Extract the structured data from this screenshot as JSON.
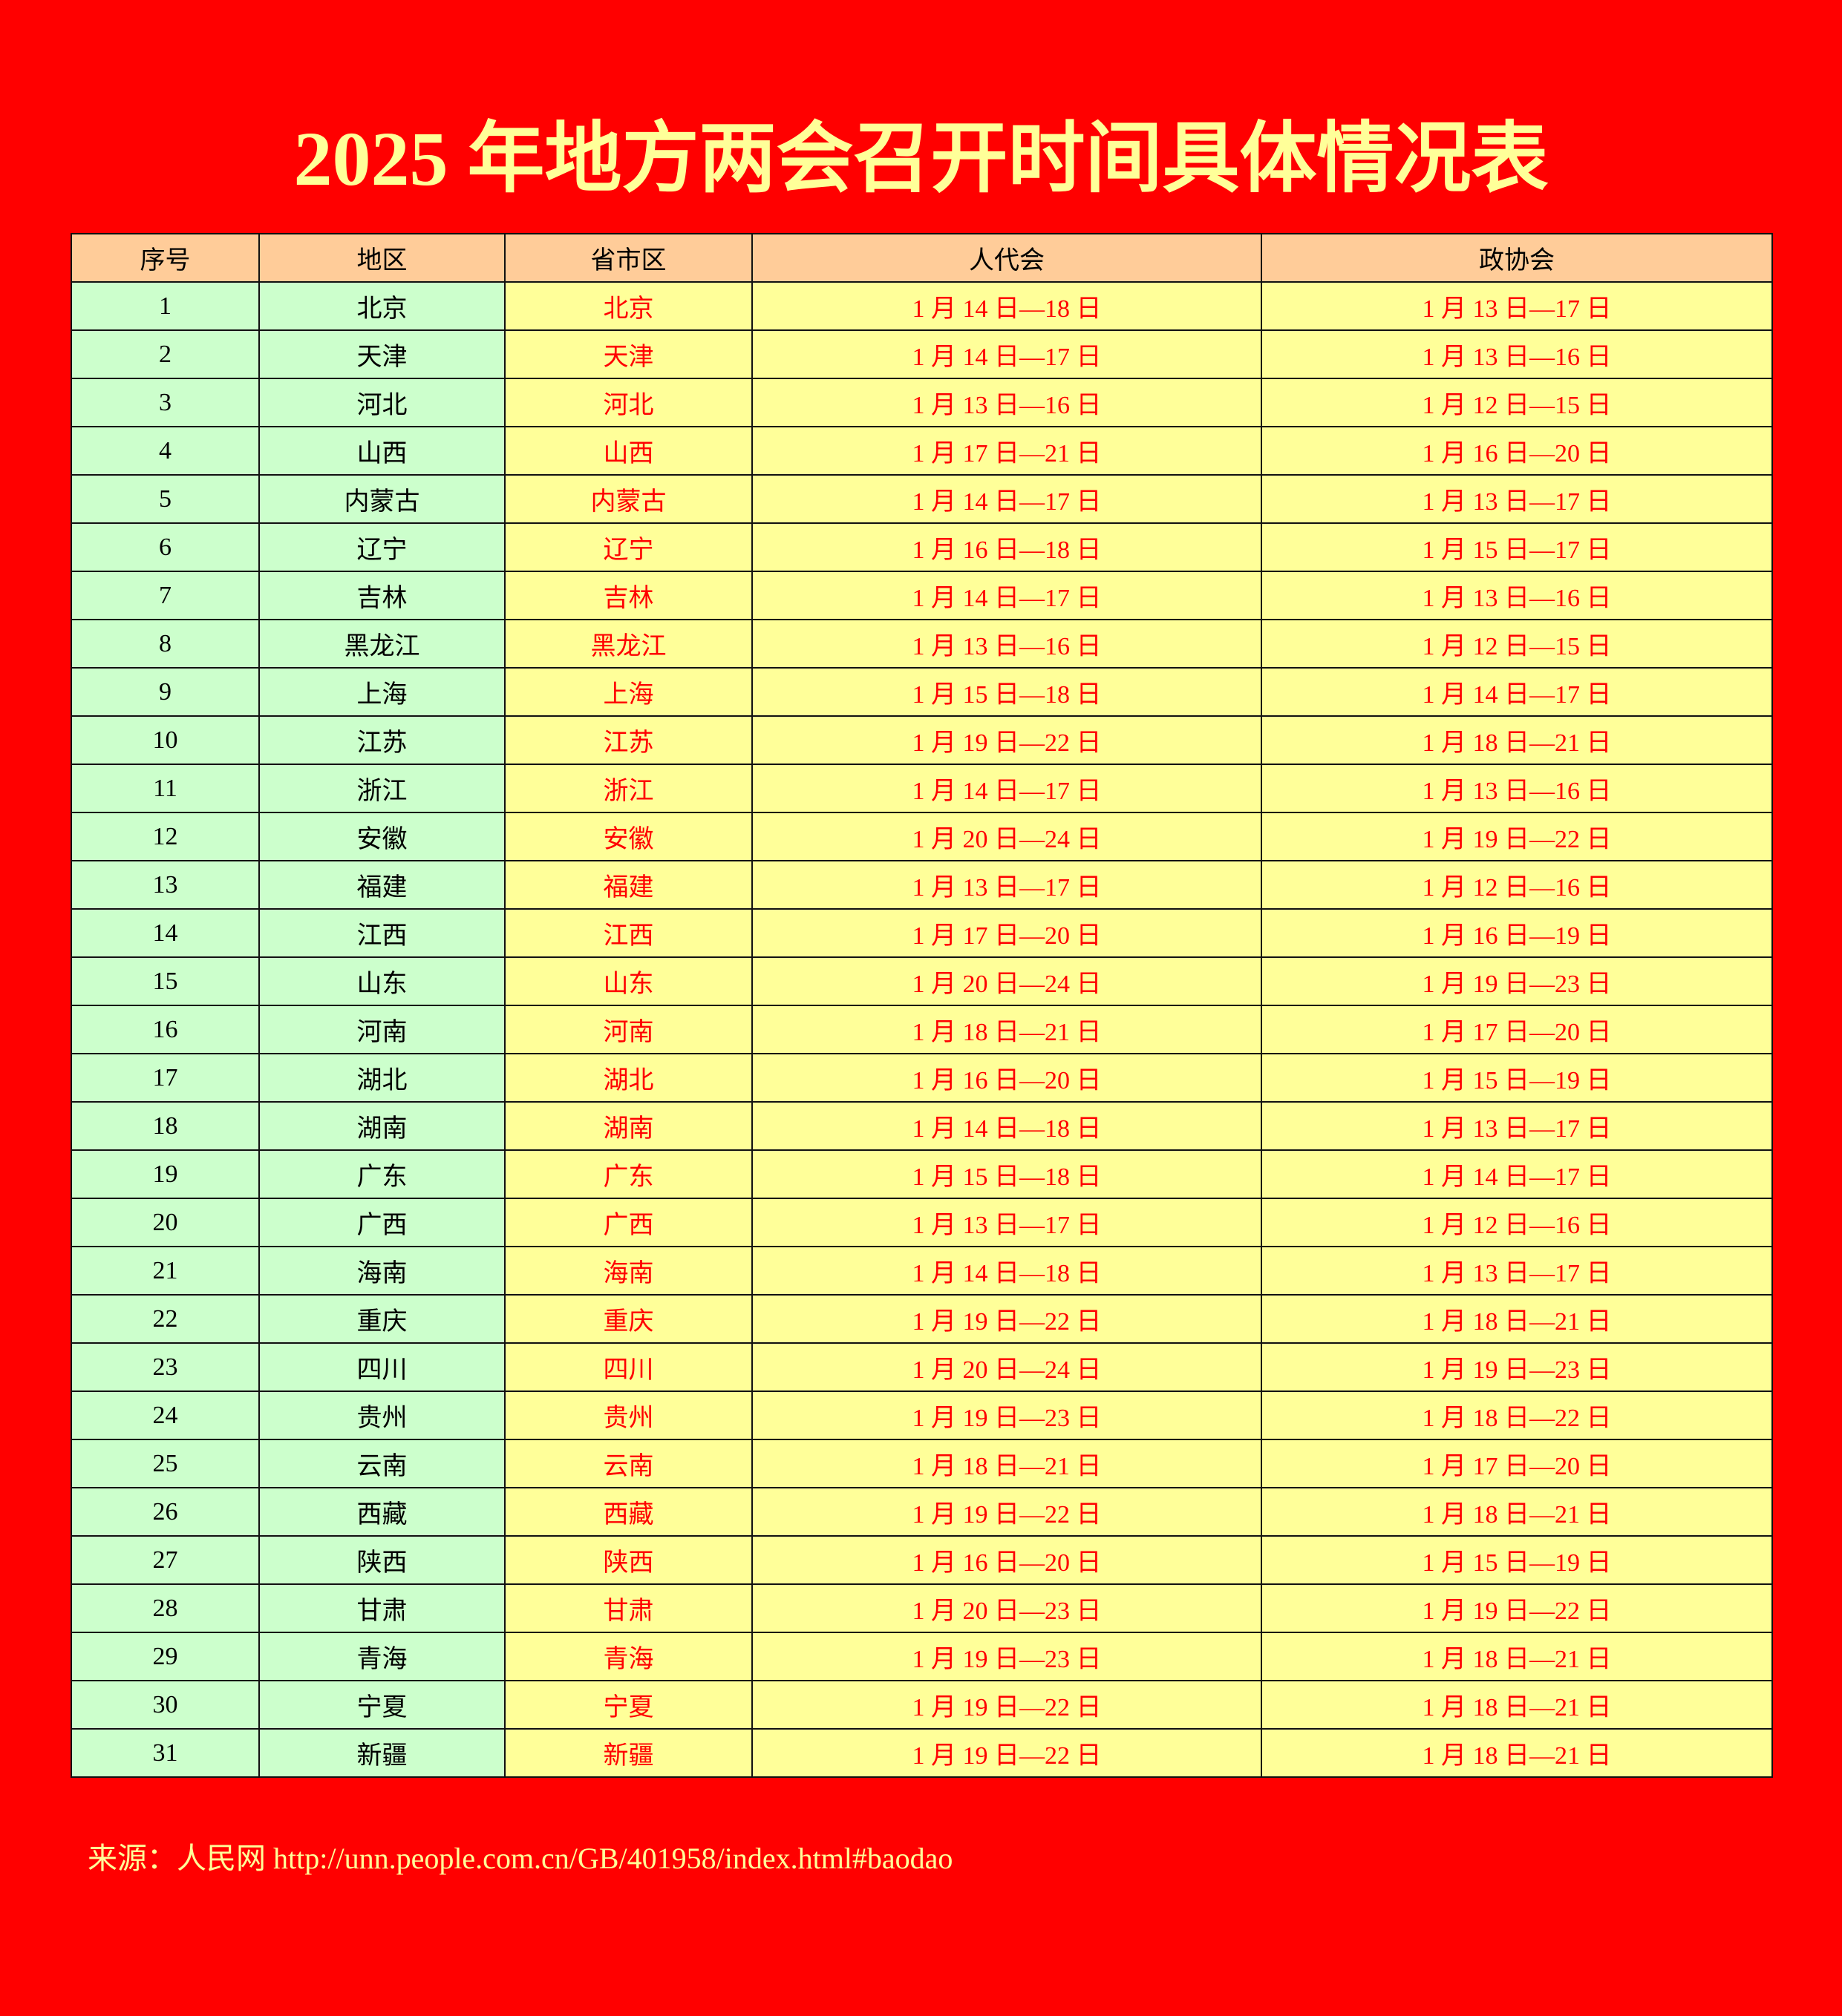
{
  "title": "2025 年地方两会召开时间具体情况表",
  "colors": {
    "background": "#ff0000",
    "title": "#ffff99",
    "header": "#ffcc99",
    "green_cell": "#ccffcc",
    "yellow_cell": "#ffff99",
    "red_text": "#ff0000"
  },
  "table": {
    "headers": [
      "序号",
      "地区",
      "省市区",
      "人代会",
      "政协会"
    ],
    "rows": [
      [
        "1",
        "北京",
        "北京",
        "1 月 14 日—18 日",
        "1 月 13 日—17 日"
      ],
      [
        "2",
        "天津",
        "天津",
        "1 月 14 日—17 日",
        "1 月 13 日—16 日"
      ],
      [
        "3",
        "河北",
        "河北",
        "1 月 13 日—16 日",
        "1 月 12 日—15 日"
      ],
      [
        "4",
        "山西",
        "山西",
        "1 月 17 日—21 日",
        "1 月 16 日—20 日"
      ],
      [
        "5",
        "内蒙古",
        "内蒙古",
        "1 月 14 日—17 日",
        "1 月 13 日—17 日"
      ],
      [
        "6",
        "辽宁",
        "辽宁",
        "1 月 16 日—18 日",
        "1 月 15 日—17 日"
      ],
      [
        "7",
        "吉林",
        "吉林",
        "1 月 14 日—17 日",
        "1 月 13 日—16 日"
      ],
      [
        "8",
        "黑龙江",
        "黑龙江",
        "1 月 13 日—16 日",
        "1 月 12 日—15 日"
      ],
      [
        "9",
        "上海",
        "上海",
        "1 月 15 日—18 日",
        "1 月 14 日—17 日"
      ],
      [
        "10",
        "江苏",
        "江苏",
        "1 月 19 日—22 日",
        "1 月 18 日—21 日"
      ],
      [
        "11",
        "浙江",
        "浙江",
        "1 月 14 日—17 日",
        "1 月 13 日—16 日"
      ],
      [
        "12",
        "安徽",
        "安徽",
        "1 月 20 日—24 日",
        "1 月 19 日—22 日"
      ],
      [
        "13",
        "福建",
        "福建",
        "1 月 13 日—17 日",
        "1 月 12 日—16 日"
      ],
      [
        "14",
        "江西",
        "江西",
        "1 月 17 日—20 日",
        "1 月 16 日—19 日"
      ],
      [
        "15",
        "山东",
        "山东",
        "1 月 20 日—24 日",
        "1 月 19 日—23 日"
      ],
      [
        "16",
        "河南",
        "河南",
        "1 月 18 日—21 日",
        "1 月 17 日—20 日"
      ],
      [
        "17",
        "湖北",
        "湖北",
        "1 月 16 日—20 日",
        "1 月 15 日—19 日"
      ],
      [
        "18",
        "湖南",
        "湖南",
        "1 月 14 日—18 日",
        "1 月 13 日—17 日"
      ],
      [
        "19",
        "广东",
        "广东",
        "1 月 15 日—18 日",
        "1 月 14 日—17 日"
      ],
      [
        "20",
        "广西",
        "广西",
        "1 月 13 日—17 日",
        "1 月 12 日—16 日"
      ],
      [
        "21",
        "海南",
        "海南",
        "1 月 14 日—18 日",
        "1 月 13 日—17 日"
      ],
      [
        "22",
        "重庆",
        "重庆",
        "1 月 19 日—22 日",
        "1 月 18 日—21 日"
      ],
      [
        "23",
        "四川",
        "四川",
        "1 月 20 日—24 日",
        "1 月 19 日—23 日"
      ],
      [
        "24",
        "贵州",
        "贵州",
        "1 月 19 日—23 日",
        "1 月 18 日—22 日"
      ],
      [
        "25",
        "云南",
        "云南",
        "1 月 18 日—21 日",
        "1 月 17 日—20 日"
      ],
      [
        "26",
        "西藏",
        "西藏",
        "1 月 19 日—22 日",
        "1 月 18 日—21 日"
      ],
      [
        "27",
        "陕西",
        "陕西",
        "1 月 16 日—20 日",
        "1 月 15 日—19 日"
      ],
      [
        "28",
        "甘肃",
        "甘肃",
        "1 月 20 日—23 日",
        "1 月 19 日—22 日"
      ],
      [
        "29",
        "青海",
        "青海",
        "1 月 19 日—23 日",
        "1 月 18 日—21 日"
      ],
      [
        "30",
        "宁夏",
        "宁夏",
        "1 月 19 日—22 日",
        "1 月 18 日—21 日"
      ],
      [
        "31",
        "新疆",
        "新疆",
        "1 月 19 日—22 日",
        "1 月 18 日—21 日"
      ]
    ]
  },
  "source": "来源：人民网 http://unn.people.com.cn/GB/401958/index.html#baodao"
}
